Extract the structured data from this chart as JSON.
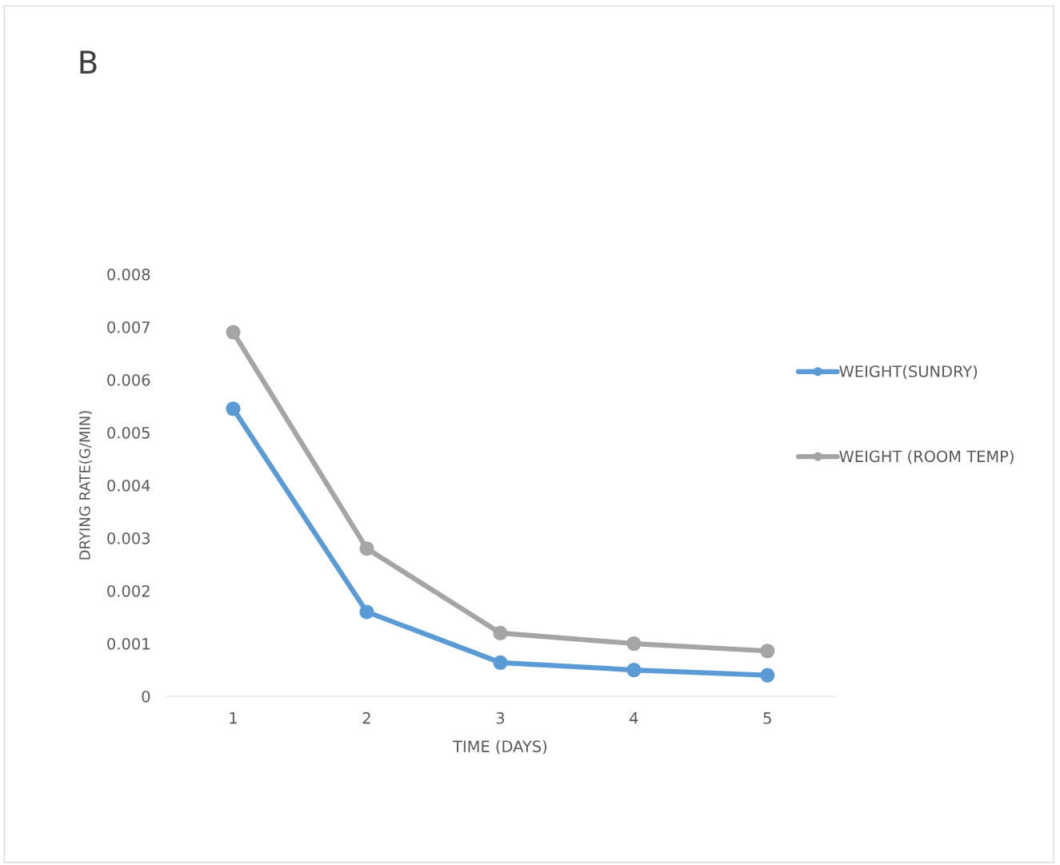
{
  "chart_data": {
    "type": "line",
    "title": "B",
    "xlabel": "TIME (DAYS)",
    "ylabel": "DRYING RATE(G/MIN)",
    "categories": [
      "1",
      "2",
      "3",
      "4",
      "5"
    ],
    "series": [
      {
        "name": "WEIGHT(SUNDRY)",
        "color": "#5b9bd5",
        "values": [
          0.00545,
          0.0016,
          0.00064,
          0.0005,
          0.0004
        ]
      },
      {
        "name": "WEIGHT (ROOM TEMP)",
        "color": "#a5a5a5",
        "values": [
          0.0069,
          0.0028,
          0.0012,
          0.001,
          0.00086
        ]
      }
    ],
    "ylim": [
      0,
      0.008
    ],
    "yticks": [
      0,
      0.001,
      0.002,
      0.003,
      0.004,
      0.005,
      0.006,
      0.007,
      0.008
    ],
    "grid": false,
    "legend": "right",
    "marker": "circle",
    "line_style": "solid"
  }
}
